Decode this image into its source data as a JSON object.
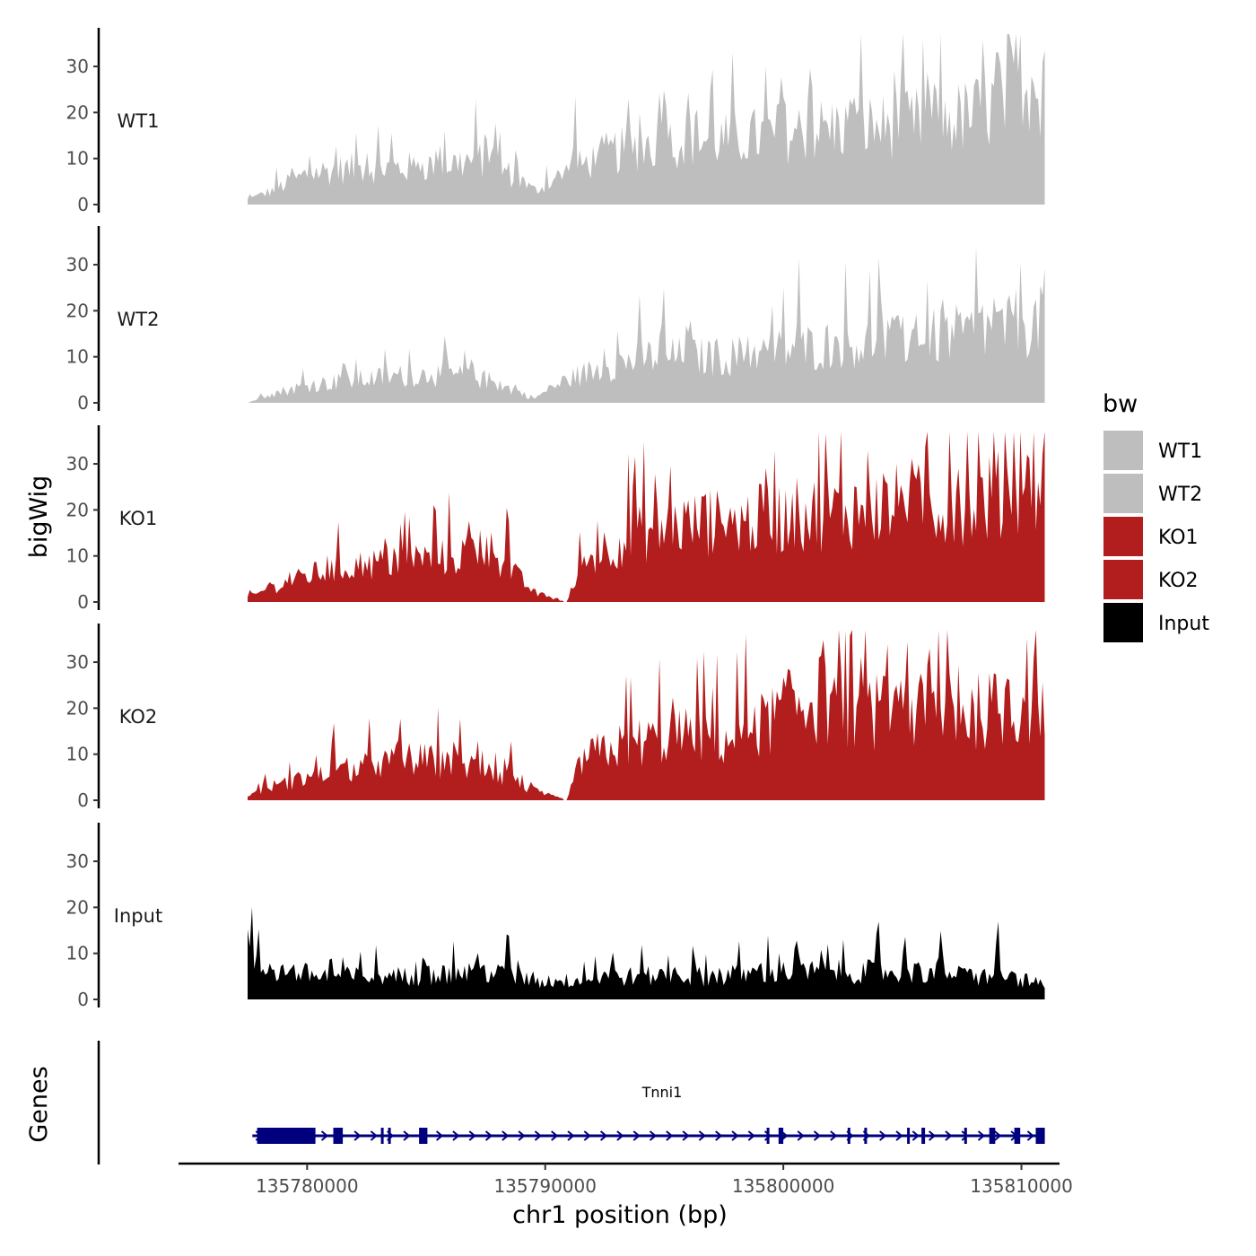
{
  "chart_data": {
    "type": "area",
    "title": "",
    "xlabel": "chr1 position (bp)",
    "ylabel": "bigWig",
    "genes_label": "Genes",
    "x_range": [
      135774600,
      135811600
    ],
    "data_range": [
      135777500,
      135810980
    ],
    "ylim": [
      0,
      38
    ],
    "y_ticks": [
      0,
      10,
      20,
      30
    ],
    "x_ticks": [
      135780000,
      135790000,
      135800000,
      135810000
    ],
    "x_tick_labels": [
      "135780000",
      "135790000",
      "135800000",
      "135810000"
    ],
    "legend": {
      "title": "bw",
      "entries": [
        {
          "label": "WT1",
          "color": "#bebebe"
        },
        {
          "label": "WT2",
          "color": "#bebebe"
        },
        {
          "label": "KO1",
          "color": "#b21e1e"
        },
        {
          "label": "KO2",
          "color": "#b21e1e"
        },
        {
          "label": "Input",
          "color": "#000000"
        }
      ]
    },
    "series": [
      {
        "name": "WT1",
        "color": "#bebebe",
        "trend": [
          [
            0,
            1
          ],
          [
            0.03,
            3
          ],
          [
            0.08,
            7
          ],
          [
            0.14,
            8
          ],
          [
            0.2,
            8
          ],
          [
            0.26,
            9
          ],
          [
            0.3,
            10
          ],
          [
            0.36,
            3
          ],
          [
            0.4,
            7
          ],
          [
            0.45,
            11
          ],
          [
            0.5,
            13
          ],
          [
            0.55,
            14
          ],
          [
            0.6,
            14
          ],
          [
            0.65,
            15
          ],
          [
            0.7,
            16
          ],
          [
            0.75,
            17
          ],
          [
            0.8,
            17
          ],
          [
            0.85,
            18
          ],
          [
            0.9,
            19
          ],
          [
            0.95,
            22
          ],
          [
            1,
            26
          ]
        ],
        "peaks": [
          [
            0.41,
            11
          ],
          [
            0.525,
            14
          ],
          [
            0.52,
            11
          ],
          [
            0.67,
            15
          ],
          [
            0.82,
            12
          ],
          [
            0.865,
            10
          ],
          [
            0.94,
            12
          ],
          [
            0.955,
            19
          ],
          [
            0.97,
            9
          ],
          [
            0.985,
            14
          ],
          [
            0.999,
            10
          ]
        ]
      },
      {
        "name": "WT2",
        "color": "#bebebe",
        "trend": [
          [
            0,
            0
          ],
          [
            0.03,
            2
          ],
          [
            0.08,
            4
          ],
          [
            0.14,
            5
          ],
          [
            0.2,
            6
          ],
          [
            0.26,
            6
          ],
          [
            0.3,
            5
          ],
          [
            0.36,
            1
          ],
          [
            0.4,
            5
          ],
          [
            0.45,
            8
          ],
          [
            0.5,
            10
          ],
          [
            0.55,
            10
          ],
          [
            0.6,
            10
          ],
          [
            0.65,
            11
          ],
          [
            0.7,
            12
          ],
          [
            0.75,
            13
          ],
          [
            0.8,
            13
          ],
          [
            0.85,
            14
          ],
          [
            0.9,
            15
          ],
          [
            0.95,
            16
          ],
          [
            1,
            18
          ]
        ],
        "peaks": [
          [
            0.12,
            5
          ],
          [
            0.28,
            4
          ],
          [
            0.52,
            7
          ],
          [
            0.55,
            5
          ],
          [
            0.69,
            8
          ],
          [
            0.79,
            7
          ],
          [
            0.84,
            6
          ],
          [
            0.92,
            7
          ],
          [
            0.97,
            8
          ],
          [
            0.999,
            11
          ]
        ]
      },
      {
        "name": "KO1",
        "color": "#b21e1e",
        "trend": [
          [
            0,
            1
          ],
          [
            0.03,
            3
          ],
          [
            0.08,
            6
          ],
          [
            0.14,
            8
          ],
          [
            0.2,
            9
          ],
          [
            0.26,
            10
          ],
          [
            0.3,
            12
          ],
          [
            0.36,
            2
          ],
          [
            0.4,
            0
          ],
          [
            0.42,
            8
          ],
          [
            0.45,
            12
          ],
          [
            0.5,
            15
          ],
          [
            0.55,
            17
          ],
          [
            0.6,
            17
          ],
          [
            0.65,
            18
          ],
          [
            0.7,
            19
          ],
          [
            0.75,
            20
          ],
          [
            0.8,
            21
          ],
          [
            0.85,
            21
          ],
          [
            0.9,
            22
          ],
          [
            0.95,
            23
          ],
          [
            1,
            25
          ]
        ],
        "peaks": [
          [
            0.325,
            11
          ],
          [
            0.485,
            14
          ],
          [
            0.53,
            10
          ],
          [
            0.78,
            11
          ],
          [
            0.83,
            9
          ],
          [
            0.85,
            8
          ],
          [
            0.955,
            9
          ],
          [
            0.985,
            12
          ]
        ]
      },
      {
        "name": "KO2",
        "color": "#b21e1e",
        "trend": [
          [
            0,
            1
          ],
          [
            0.03,
            3
          ],
          [
            0.08,
            5
          ],
          [
            0.14,
            7
          ],
          [
            0.2,
            9
          ],
          [
            0.26,
            8
          ],
          [
            0.3,
            7
          ],
          [
            0.36,
            2
          ],
          [
            0.4,
            0
          ],
          [
            0.42,
            9
          ],
          [
            0.45,
            11
          ],
          [
            0.5,
            13
          ],
          [
            0.55,
            14
          ],
          [
            0.6,
            13
          ],
          [
            0.65,
            17
          ],
          [
            0.7,
            22
          ],
          [
            0.75,
            20
          ],
          [
            0.8,
            19
          ],
          [
            0.85,
            19
          ],
          [
            0.9,
            19
          ],
          [
            0.95,
            20
          ],
          [
            1,
            22
          ]
        ],
        "peaks": [
          [
            0.108,
            12
          ],
          [
            0.33,
            8
          ],
          [
            0.72,
            11
          ],
          [
            0.757,
            12
          ],
          [
            0.855,
            10
          ],
          [
            0.88,
            8
          ],
          [
            0.955,
            9
          ],
          [
            0.99,
            10
          ]
        ]
      },
      {
        "name": "Input",
        "color": "#000000",
        "trend": [
          [
            0,
            7
          ],
          [
            0.1,
            5
          ],
          [
            0.2,
            5
          ],
          [
            0.3,
            6
          ],
          [
            0.36,
            4
          ],
          [
            0.4,
            4
          ],
          [
            0.45,
            5
          ],
          [
            0.5,
            5
          ],
          [
            0.55,
            5
          ],
          [
            0.6,
            5
          ],
          [
            0.65,
            6
          ],
          [
            0.7,
            6
          ],
          [
            0.75,
            6
          ],
          [
            0.8,
            6
          ],
          [
            0.85,
            6
          ],
          [
            0.9,
            5
          ],
          [
            0.95,
            5
          ],
          [
            1,
            3
          ]
        ],
        "peaks": [
          [
            0.005,
            8
          ],
          [
            0.22,
            7
          ],
          [
            0.325,
            8
          ],
          [
            0.69,
            6
          ],
          [
            0.79,
            8
          ],
          [
            0.87,
            6
          ],
          [
            0.94,
            9
          ]
        ]
      }
    ],
    "gene": {
      "name": "Tnni1",
      "color": "#00007f",
      "start": 135777700,
      "end": 135810980,
      "strand": "+",
      "exons": [
        [
          135777900,
          135780350
        ],
        [
          135781100,
          135781500
        ],
        [
          135783100,
          135783200
        ],
        [
          135783400,
          135783500
        ],
        [
          135784700,
          135785050
        ],
        [
          135799300,
          135799400
        ],
        [
          135799800,
          135800000
        ],
        [
          135802700,
          135802800
        ],
        [
          135803400,
          135803500
        ],
        [
          135805200,
          135805300
        ],
        [
          135805800,
          135805950
        ],
        [
          135807600,
          135807700
        ],
        [
          135808650,
          135808900
        ],
        [
          135809700,
          135809950
        ],
        [
          135810600,
          135810980
        ]
      ]
    }
  }
}
